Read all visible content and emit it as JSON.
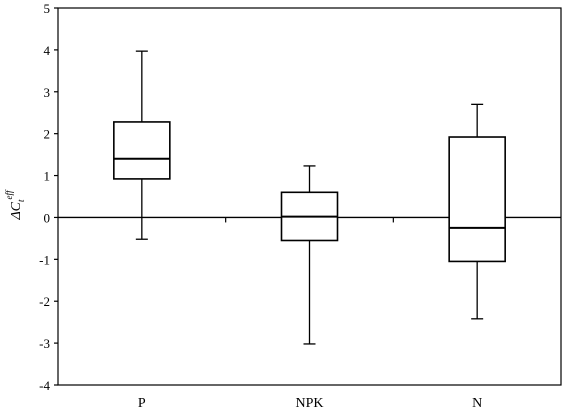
{
  "chart_data": {
    "type": "box",
    "title": "",
    "xlabel": "",
    "ylabel": {
      "base": "ΔC",
      "subscript": "t",
      "superscript": "eff"
    },
    "ylim": [
      -4,
      5
    ],
    "yticks": [
      -4,
      -3,
      -2,
      -1,
      0,
      1,
      2,
      3,
      4,
      5
    ],
    "ytick_labels": [
      "-4",
      "-3",
      "-2",
      "-1",
      "0",
      "1",
      "2",
      "3",
      "4",
      "5"
    ],
    "reference_line": 0,
    "categories": [
      "P",
      "NPK",
      "N"
    ],
    "boxes": [
      {
        "label": "P",
        "min": -0.52,
        "q1": 0.92,
        "median": 1.4,
        "q3": 2.28,
        "max": 3.97
      },
      {
        "label": "NPK",
        "min": -3.02,
        "q1": -0.55,
        "median": 0.02,
        "q3": 0.6,
        "max": 1.23
      },
      {
        "label": "N",
        "min": -2.42,
        "q1": -1.05,
        "median": -0.25,
        "q3": 1.92,
        "max": 2.7
      }
    ]
  }
}
